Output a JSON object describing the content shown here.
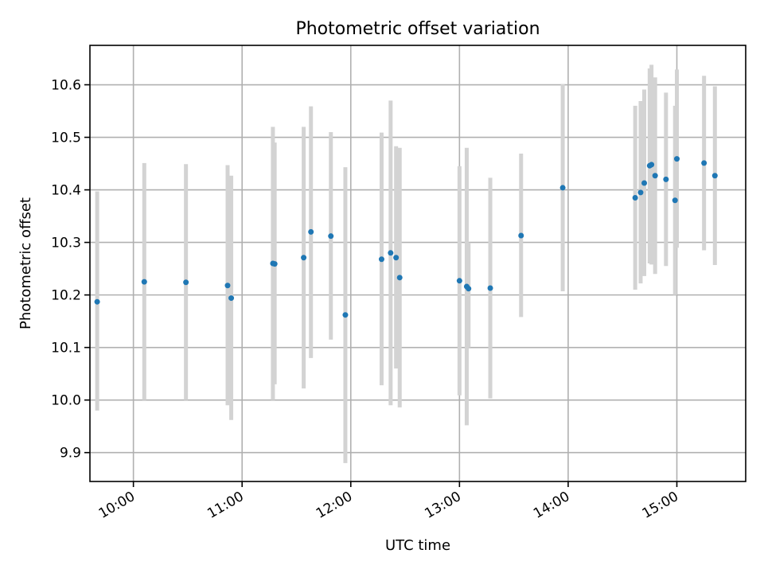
{
  "chart_data": {
    "type": "scatter",
    "title": "Photometric offset variation",
    "xlabel": "UTC time",
    "ylabel": "Photometric offset",
    "x_tick_labels": [
      "10:00",
      "11:00",
      "12:00",
      "13:00",
      "14:00",
      "15:00"
    ],
    "y_tick_labels": [
      "9.9",
      "10.0",
      "10.1",
      "10.2",
      "10.3",
      "10.4",
      "10.5",
      "10.6"
    ],
    "xlim": [
      "09:36",
      "15:38"
    ],
    "ylim": [
      9.845,
      10.675
    ],
    "grid": true,
    "colors": {
      "point": "#1f77b4",
      "errorbar": "#d3d3d3"
    },
    "points": [
      {
        "x": "09:40",
        "y": 10.187,
        "ylow": 9.98,
        "yhigh": 10.397
      },
      {
        "x": "10:06",
        "y": 10.225,
        "ylow": 10.0,
        "yhigh": 10.451
      },
      {
        "x": "10:29",
        "y": 10.224,
        "ylow": 10.0,
        "yhigh": 10.449
      },
      {
        "x": "10:52",
        "y": 10.218,
        "ylow": 9.99,
        "yhigh": 10.447
      },
      {
        "x": "10:54",
        "y": 10.194,
        "ylow": 9.962,
        "yhigh": 10.427
      },
      {
        "x": "11:17",
        "y": 10.26,
        "ylow": 10.0,
        "yhigh": 10.52
      },
      {
        "x": "11:18",
        "y": 10.259,
        "ylow": 10.03,
        "yhigh": 10.49
      },
      {
        "x": "11:34",
        "y": 10.271,
        "ylow": 10.022,
        "yhigh": 10.52
      },
      {
        "x": "11:38",
        "y": 10.32,
        "ylow": 10.08,
        "yhigh": 10.559
      },
      {
        "x": "11:49",
        "y": 10.312,
        "ylow": 10.115,
        "yhigh": 10.51
      },
      {
        "x": "11:57",
        "y": 10.162,
        "ylow": 9.88,
        "yhigh": 10.443
      },
      {
        "x": "12:17",
        "y": 10.268,
        "ylow": 10.028,
        "yhigh": 10.509
      },
      {
        "x": "12:22",
        "y": 10.28,
        "ylow": 9.99,
        "yhigh": 10.57
      },
      {
        "x": "12:25",
        "y": 10.271,
        "ylow": 10.06,
        "yhigh": 10.483
      },
      {
        "x": "12:27",
        "y": 10.233,
        "ylow": 9.986,
        "yhigh": 10.48
      },
      {
        "x": "13:00",
        "y": 10.227,
        "ylow": 10.009,
        "yhigh": 10.445
      },
      {
        "x": "13:04",
        "y": 10.216,
        "ylow": 9.952,
        "yhigh": 10.48
      },
      {
        "x": "13:05",
        "y": 10.212,
        "ylow": 10.1,
        "yhigh": 10.3
      },
      {
        "x": "13:17",
        "y": 10.213,
        "ylow": 10.003,
        "yhigh": 10.423
      },
      {
        "x": "13:34",
        "y": 10.313,
        "ylow": 10.158,
        "yhigh": 10.469
      },
      {
        "x": "13:57",
        "y": 10.404,
        "ylow": 10.207,
        "yhigh": 10.601
      },
      {
        "x": "14:37",
        "y": 10.385,
        "ylow": 10.21,
        "yhigh": 10.56
      },
      {
        "x": "14:40",
        "y": 10.395,
        "ylow": 10.222,
        "yhigh": 10.569
      },
      {
        "x": "14:42",
        "y": 10.413,
        "ylow": 10.236,
        "yhigh": 10.591
      },
      {
        "x": "14:45",
        "y": 10.446,
        "ylow": 10.26,
        "yhigh": 10.631
      },
      {
        "x": "14:46",
        "y": 10.448,
        "ylow": 10.258,
        "yhigh": 10.638
      },
      {
        "x": "14:48",
        "y": 10.427,
        "ylow": 10.24,
        "yhigh": 10.614
      },
      {
        "x": "14:54",
        "y": 10.42,
        "ylow": 10.255,
        "yhigh": 10.585
      },
      {
        "x": "14:59",
        "y": 10.38,
        "ylow": 10.2,
        "yhigh": 10.56
      },
      {
        "x": "15:00",
        "y": 10.459,
        "ylow": 10.29,
        "yhigh": 10.629
      },
      {
        "x": "15:15",
        "y": 10.451,
        "ylow": 10.285,
        "yhigh": 10.617
      },
      {
        "x": "15:21",
        "y": 10.427,
        "ylow": 10.257,
        "yhigh": 10.597
      }
    ]
  }
}
